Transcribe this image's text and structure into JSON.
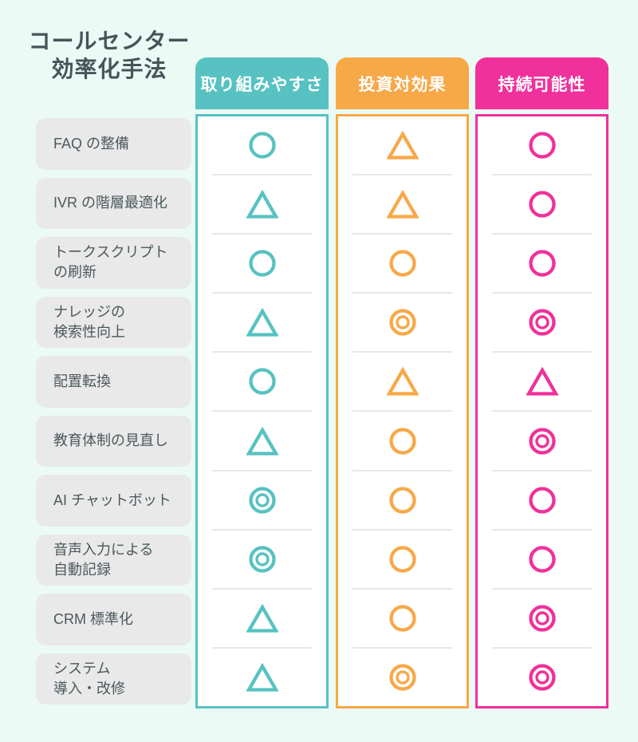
{
  "title": {
    "line1": "コールセンター",
    "line2": "効率化手法"
  },
  "columns": [
    {
      "id": "ease",
      "label": "取り組みやすさ",
      "color": "#57C2C1"
    },
    {
      "id": "roi",
      "label": "投資対効果",
      "color": "#F7A847"
    },
    {
      "id": "sustainability",
      "label": "持続可能性",
      "color": "#F0309B"
    }
  ],
  "rows": [
    {
      "label_lines": [
        "FAQ の整備"
      ],
      "ratings": [
        "circle",
        "triangle",
        "circle"
      ]
    },
    {
      "label_lines": [
        "IVR の階層最適化"
      ],
      "ratings": [
        "triangle",
        "triangle",
        "circle"
      ]
    },
    {
      "label_lines": [
        "トークスクリプト",
        "の刷新"
      ],
      "ratings": [
        "circle",
        "circle",
        "circle"
      ]
    },
    {
      "label_lines": [
        "ナレッジの",
        "検索性向上"
      ],
      "ratings": [
        "triangle",
        "double-circle",
        "double-circle"
      ]
    },
    {
      "label_lines": [
        "配置転換"
      ],
      "ratings": [
        "circle",
        "triangle",
        "triangle"
      ]
    },
    {
      "label_lines": [
        "教育体制の見直し"
      ],
      "ratings": [
        "triangle",
        "circle",
        "double-circle"
      ]
    },
    {
      "label_lines": [
        "AI チャットボット"
      ],
      "ratings": [
        "double-circle",
        "circle",
        "circle"
      ]
    },
    {
      "label_lines": [
        "音声入力による",
        "自動記録"
      ],
      "ratings": [
        "double-circle",
        "circle",
        "circle"
      ]
    },
    {
      "label_lines": [
        "CRM 標準化"
      ],
      "ratings": [
        "triangle",
        "circle",
        "double-circle"
      ]
    },
    {
      "label_lines": [
        "システム",
        "導入・改修"
      ],
      "ratings": [
        "triangle",
        "double-circle",
        "double-circle"
      ]
    }
  ],
  "symbols": {
    "double-circle": "◎",
    "circle": "○",
    "triangle": "△"
  },
  "colors": {
    "background": "#EBFAF5",
    "label_box": "#E9E9E9",
    "text": "#4C585C",
    "header_text": "#FFFFFF",
    "separator": "#E7E7E7",
    "cell_background": "#FFFFFF"
  },
  "chart_data": {
    "type": "table",
    "title": "コールセンター効率化手法",
    "columns": [
      "取り組みやすさ",
      "投資対効果",
      "持続可能性"
    ],
    "rows": [
      "FAQ の整備",
      "IVR の階層最適化",
      "トークスクリプトの刷新",
      "ナレッジの検索性向上",
      "配置転換",
      "教育体制の見直し",
      "AI チャットボット",
      "音声入力による自動記録",
      "CRM 標準化",
      "システム導入・改修"
    ],
    "values": [
      [
        "○",
        "△",
        "○"
      ],
      [
        "△",
        "△",
        "○"
      ],
      [
        "○",
        "○",
        "○"
      ],
      [
        "△",
        "◎",
        "◎"
      ],
      [
        "○",
        "△",
        "△"
      ],
      [
        "△",
        "○",
        "◎"
      ],
      [
        "◎",
        "○",
        "○"
      ],
      [
        "◎",
        "○",
        "○"
      ],
      [
        "△",
        "○",
        "◎"
      ],
      [
        "△",
        "◎",
        "◎"
      ]
    ],
    "legend_position": "none",
    "grid": "row-separators"
  }
}
